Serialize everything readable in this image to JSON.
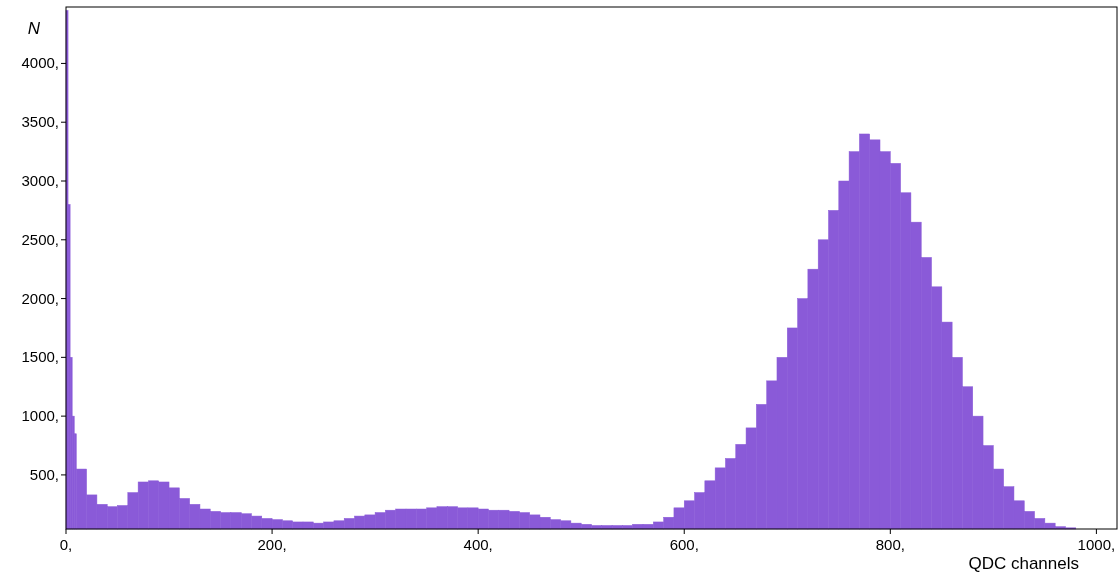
{
  "chart_data": {
    "type": "histogram",
    "xlabel": "QDC channels",
    "ylabel": "N",
    "color": "#8a5ad8",
    "bins": [
      0,
      2,
      4,
      6,
      8,
      10,
      20,
      30,
      40,
      50,
      60,
      70,
      80,
      90,
      100,
      110,
      120,
      130,
      140,
      150,
      160,
      170,
      180,
      190,
      200,
      210,
      220,
      230,
      240,
      250,
      260,
      270,
      280,
      290,
      300,
      310,
      320,
      330,
      340,
      350,
      360,
      370,
      380,
      390,
      400,
      410,
      420,
      430,
      440,
      450,
      460,
      470,
      480,
      490,
      500,
      510,
      520,
      530,
      540,
      550,
      560,
      570,
      580,
      590,
      600,
      610,
      620,
      630,
      640,
      650,
      660,
      670,
      680,
      690,
      700,
      710,
      720,
      730,
      740,
      750,
      760,
      770,
      780,
      790,
      800,
      810,
      820,
      830,
      840,
      850,
      860,
      870,
      880,
      890,
      900,
      910,
      920,
      930,
      940,
      950,
      960,
      970,
      980
    ],
    "values": [
      4450,
      2800,
      1500,
      1000,
      850,
      550,
      330,
      250,
      230,
      240,
      350,
      440,
      450,
      440,
      390,
      300,
      250,
      210,
      190,
      180,
      180,
      170,
      150,
      130,
      120,
      110,
      100,
      100,
      90,
      100,
      110,
      130,
      150,
      160,
      180,
      200,
      210,
      210,
      210,
      220,
      230,
      230,
      220,
      220,
      210,
      200,
      200,
      190,
      180,
      160,
      140,
      120,
      110,
      90,
      80,
      70,
      70,
      70,
      70,
      80,
      80,
      100,
      140,
      220,
      280,
      350,
      450,
      560,
      640,
      760,
      900,
      1100,
      1300,
      1500,
      1750,
      2000,
      2250,
      2500,
      2750,
      3000,
      3250,
      3400,
      3350,
      3250,
      3150,
      2900,
      2650,
      2350,
      2100,
      1800,
      1500,
      1250,
      1000,
      750,
      550,
      400,
      280,
      190,
      130,
      90,
      60,
      50
    ],
    "xlim": [
      0,
      1020
    ],
    "ylim": [
      40,
      4480
    ],
    "xticks": [
      {
        "value": 0,
        "label": "0,"
      },
      {
        "value": 200,
        "label": "200,"
      },
      {
        "value": 400,
        "label": "400,"
      },
      {
        "value": 600,
        "label": "600,"
      },
      {
        "value": 800,
        "label": "800,"
      },
      {
        "value": 1000,
        "label": "1000,"
      }
    ],
    "yticks": [
      {
        "value": 500,
        "label": "500,"
      },
      {
        "value": 1000,
        "label": "1000,"
      },
      {
        "value": 1500,
        "label": "1500,"
      },
      {
        "value": 2000,
        "label": "2000,"
      },
      {
        "value": 2500,
        "label": "2500,"
      },
      {
        "value": 3000,
        "label": "3000,"
      },
      {
        "value": 3500,
        "label": "3500,"
      },
      {
        "value": 4000,
        "label": "4000,"
      }
    ],
    "grid": false
  }
}
